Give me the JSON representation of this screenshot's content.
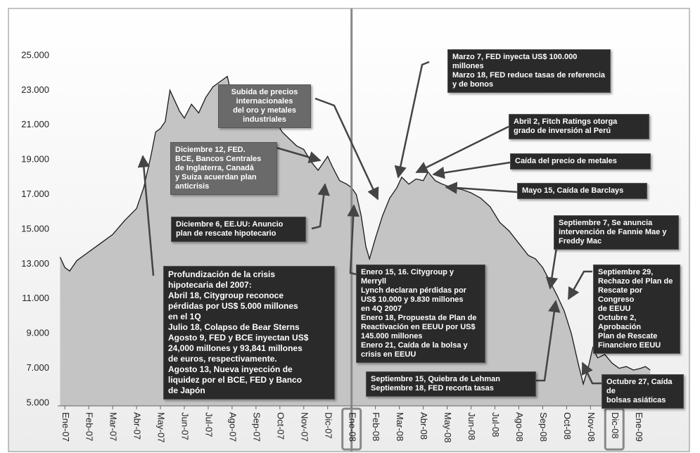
{
  "chart_data": {
    "type": "area",
    "color": "#1a1a1a",
    "fill": "#c4c4c4",
    "x": [
      -0.2,
      0,
      0.2,
      0.5,
      1,
      1.5,
      2,
      2.5,
      3,
      3.3,
      3.6,
      3.8,
      4,
      4.2,
      4.4,
      4.6,
      4.8,
      5,
      5.3,
      5.6,
      5.9,
      6.2,
      6.5,
      6.8,
      7,
      7.2,
      7.4,
      7.6,
      7.9,
      8.2,
      8.5,
      8.8,
      9.1,
      9.4,
      9.7,
      10,
      10.3,
      10.6,
      10.8,
      11,
      11.2,
      11.5,
      11.8,
      12,
      12.2,
      12.4,
      12.6,
      12.75,
      13,
      13.3,
      13.6,
      13.9,
      14.1,
      14.4,
      14.7,
      15,
      15.2,
      15.5,
      15.8,
      16.2,
      16.6,
      17,
      17.4,
      17.8,
      18.2,
      18.6,
      19,
      19.4,
      19.7,
      20,
      20.3,
      20.6,
      20.9,
      21.2,
      21.5,
      21.7,
      21.9,
      22.1,
      22.3,
      22.6,
      22.9,
      23.2,
      23.5,
      23.8,
      24.1,
      24.3,
      24.5
    ],
    "values": [
      13400,
      12800,
      12600,
      13200,
      13700,
      14200,
      14700,
      15500,
      16200,
      17400,
      19200,
      20600,
      20800,
      21200,
      23000,
      22400,
      21800,
      21400,
      22200,
      21700,
      22600,
      23200,
      23500,
      23800,
      22600,
      21400,
      22600,
      21800,
      22300,
      21600,
      21000,
      21300,
      20600,
      20200,
      19800,
      19600,
      18900,
      18400,
      18800,
      19200,
      18600,
      17800,
      17600,
      17400,
      17000,
      15800,
      14000,
      13300,
      14500,
      15800,
      16800,
      17400,
      18000,
      17600,
      17900,
      17800,
      18300,
      17800,
      17600,
      17400,
      17300,
      17100,
      16800,
      16300,
      15400,
      14900,
      14200,
      13500,
      13300,
      12800,
      12000,
      11200,
      10300,
      9000,
      7200,
      6100,
      7000,
      8200,
      7600,
      7800,
      7300,
      7000,
      7100,
      6900,
      7000,
      7100,
      6900
    ],
    "xlim": [
      -0.3,
      24.7
    ],
    "xticks": [
      {
        "value": 0,
        "label": "Ene-07"
      },
      {
        "value": 1,
        "label": "Feb-07"
      },
      {
        "value": 2,
        "label": "Mar-07"
      },
      {
        "value": 3,
        "label": "Abr-07"
      },
      {
        "value": 4,
        "label": "May-07"
      },
      {
        "value": 5,
        "label": "Jun-07"
      },
      {
        "value": 6,
        "label": "Jul-07"
      },
      {
        "value": 7,
        "label": "Ago-07"
      },
      {
        "value": 8,
        "label": "Sep-07"
      },
      {
        "value": 9,
        "label": "Oct-07"
      },
      {
        "value": 10,
        "label": "Nov-07"
      },
      {
        "value": 11,
        "label": "Dic-07"
      },
      {
        "value": 12,
        "label": "Ene-08"
      },
      {
        "value": 13,
        "label": "Feb-08"
      },
      {
        "value": 14,
        "label": "Mar-08"
      },
      {
        "value": 15,
        "label": "Abr-08"
      },
      {
        "value": 16,
        "label": "May-08"
      },
      {
        "value": 17,
        "label": "Jun-08"
      },
      {
        "value": 18,
        "label": "Jul-08"
      },
      {
        "value": 19,
        "label": "Ago-08"
      },
      {
        "value": 20,
        "label": "Sep-08"
      },
      {
        "value": 21,
        "label": "Oct-08"
      },
      {
        "value": 22,
        "label": "Nov-08"
      },
      {
        "value": 23,
        "label": "Dic-08"
      },
      {
        "value": 24,
        "label": "Ene-09"
      }
    ],
    "ylim": [
      5000,
      25000
    ],
    "yticks": [
      {
        "value": 25000,
        "label": "25.000"
      },
      {
        "value": 23000,
        "label": "23.000"
      },
      {
        "value": 21000,
        "label": "21.000"
      },
      {
        "value": 19000,
        "label": "19.000"
      },
      {
        "value": 17000,
        "label": "17.000"
      },
      {
        "value": 15000,
        "label": "15.000"
      },
      {
        "value": 13000,
        "label": "13.000"
      },
      {
        "value": 11000,
        "label": "11.000"
      },
      {
        "value": 9000,
        "label": "9.000"
      },
      {
        "value": 7000,
        "label": "7.000"
      },
      {
        "value": 5000,
        "label": "5.000"
      }
    ],
    "grid": false,
    "highlight_x": 12,
    "annotations": [
      {
        "lines": [
          "Marzo 7, FED inyecta US$ 100.000 millones",
          "Marzo 18, FED reduce tasas de referencia",
          "y de bonos"
        ]
      },
      {
        "lines": [
          "Subida de precios",
          "internacionales",
          "del oro y metales",
          "industriales"
        ]
      },
      {
        "lines": [
          "Abril 2, Fitch Ratings otorga",
          "grado de inversión al Perú"
        ]
      },
      {
        "lines": [
          "Diciembre 12, FED.",
          "BCE, Bancos Centrales",
          "de Inglaterra, Canadá",
          "y Suiza acuerdan plan",
          "anticrisis"
        ]
      },
      {
        "lines": [
          "Caída del precio de metales"
        ]
      },
      {
        "lines": [
          "Mayo 15, Caída de Barclays"
        ]
      },
      {
        "lines": [
          "Diciembre 6, EE.UU: Anuncio",
          "plan de rescate hipotecario"
        ]
      },
      {
        "lines": [
          "Septiembre 7, Se anuncia",
          "intervención de Fannie Mae y",
          "Freddy Mac"
        ]
      },
      {
        "lines": [
          "Profundización de la crisis",
          "hipotecaria del 2007:",
          "Abril 18, Citygroup reconoce",
          "pérdidas por US$ 5.000 millones",
          "en el 1Q",
          "Julio 18, Colapso de Bear Sterns",
          "Agosto 9, FED y BCE inyectan US$",
          "24,000 millones y 93,841 millones",
          "de euros, respectivamente.",
          "Agosto 13, Nueva inyección de",
          "liquidez por el BCE, FED y Banco",
          "de Japón"
        ]
      },
      {
        "lines": [
          "Enero 15, 16. Citygroup y Merryll",
          "Lynch declaran pérdidas por",
          "US$ 10.000 y 9.830 millones",
          "en 4Q 2007",
          "Enero 18, Propuesta de Plan de",
          "Reactivación en EEUU por US$",
          "145.000 millones",
          "Enero 21, Caída de la bolsa y",
          "crisis en EEUU"
        ]
      },
      {
        "lines": [
          "Septiembre 29,",
          "Rechazo del Plan de",
          "Rescate por Congreso",
          "de EEUU",
          "Octubre 2, Aprobación",
          "Plan de Rescate",
          "Financiero EEUU"
        ]
      },
      {
        "lines": [
          "Septiembre 15, Quiebra de Lehman",
          "Septiembre 18, FED recorta tasas"
        ]
      },
      {
        "lines": [
          "Octubre 27, Caída de",
          "bolsas asiáticas"
        ]
      }
    ]
  }
}
